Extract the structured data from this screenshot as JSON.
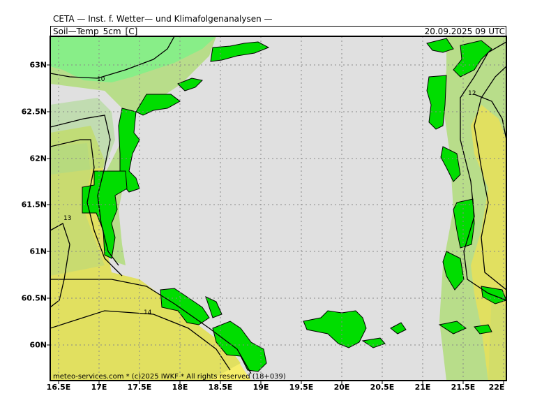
{
  "header": {
    "title": "CETA — Inst. f. Wetter— und Klimafolgenanalysen —",
    "subtitle": "Soil—Temp_5cm_[C]",
    "timestamp": "20.09.2025  09  UTC"
  },
  "map": {
    "lat_ticks": [
      "63N",
      "62.5N",
      "62N",
      "61.5N",
      "61N",
      "60.5N",
      "60N"
    ],
    "lon_ticks": [
      "16.5E",
      "17E",
      "17.5E",
      "18E",
      "18.5E",
      "19E",
      "19.5E",
      "20E",
      "20.5E",
      "21E",
      "21.5E",
      "22E"
    ],
    "contour_labels": [
      "10",
      "12",
      "13",
      "14"
    ],
    "colors": {
      "sea": "#e0e0e0",
      "temp_lt_10": "#88ee88",
      "temp_10_11": "#b8dd8a",
      "temp_11_12": "#a8d88a",
      "temp_12_13": "#c9db70",
      "temp_13_14": "#e1e060",
      "temp_14_15": "#f7ee6a",
      "coast_fill": "#00dd00"
    }
  },
  "footer": {
    "credit": "meteo-services.com  *  (c)2025  IWKF  *  All  rights  reserved  (18+039)"
  }
}
